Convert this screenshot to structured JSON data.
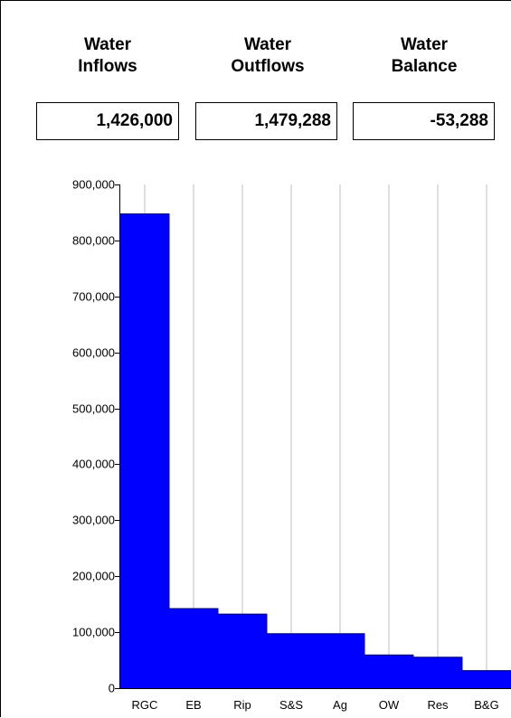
{
  "stats": [
    {
      "title_line1": "Water",
      "title_line2": "Inflows",
      "value": "1,426,000"
    },
    {
      "title_line1": "Water",
      "title_line2": "Outflows",
      "value": "1,479,288"
    },
    {
      "title_line1": "Water",
      "title_line2": "Balance",
      "value": "-53,288"
    }
  ],
  "colors": {
    "bar": "#0000ff",
    "grid": "#c0c0c0",
    "axis": "#000000"
  },
  "chart_data": {
    "type": "bar",
    "categories": [
      "RGC",
      "EB",
      "Rip",
      "S&S",
      "Ag",
      "OW",
      "Res",
      "B&G"
    ],
    "values": [
      848000,
      143000,
      133000,
      98000,
      98000,
      60000,
      56000,
      32000
    ],
    "ylim": [
      0,
      900000
    ],
    "yticks": [
      0,
      100000,
      200000,
      300000,
      400000,
      500000,
      600000,
      700000,
      800000,
      900000
    ],
    "ytick_labels": [
      "0",
      "100,000",
      "200,000",
      "300,000",
      "400,000",
      "500,000",
      "600,000",
      "700,000",
      "800,000",
      "900,000"
    ],
    "title": "",
    "xlabel": "",
    "ylabel": "",
    "grid": "vertical",
    "bar_gap": "none"
  }
}
